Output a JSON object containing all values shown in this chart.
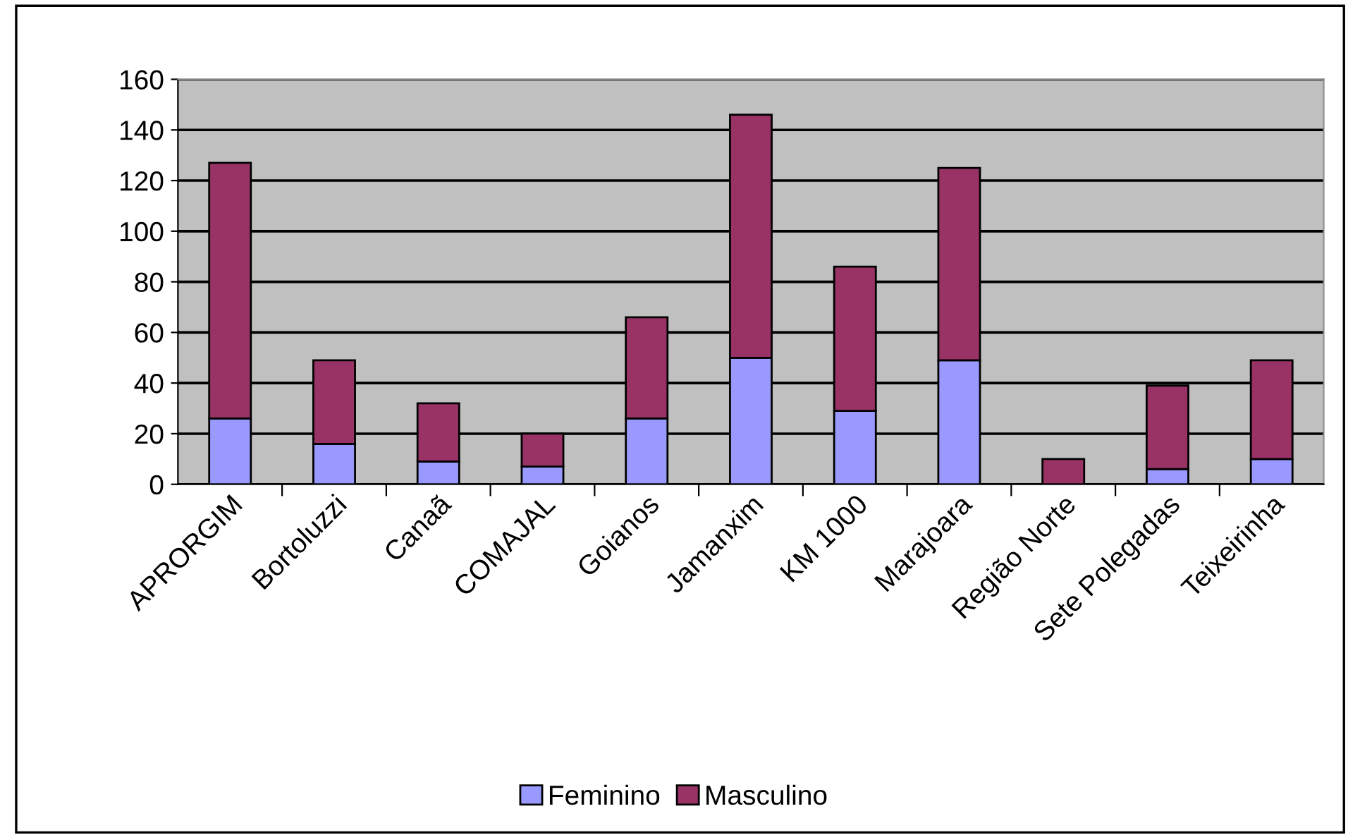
{
  "chart_data": {
    "type": "bar",
    "stacked": true,
    "categories": [
      "APRORGIM",
      "Bortoluzzi",
      "Canaã",
      "COMAJAL",
      "Goianos",
      "Jamanxim",
      "KM 1000",
      "Marajoara",
      "Região Norte",
      "Sete Polegadas",
      "Teixeirinha"
    ],
    "series": [
      {
        "name": "Feminino",
        "color": "#9999ff",
        "values": [
          26,
          16,
          9,
          7,
          26,
          50,
          29,
          49,
          null,
          6,
          10
        ]
      },
      {
        "name": "Masculino",
        "color": "#993366",
        "values": [
          101,
          33,
          23,
          13,
          40,
          96,
          57,
          76,
          10,
          33,
          39
        ]
      }
    ],
    "ylim": [
      0,
      160
    ],
    "yticks": [
      0,
      20,
      40,
      60,
      80,
      100,
      120,
      140,
      160
    ],
    "grid": "y",
    "legend": "bottom"
  }
}
